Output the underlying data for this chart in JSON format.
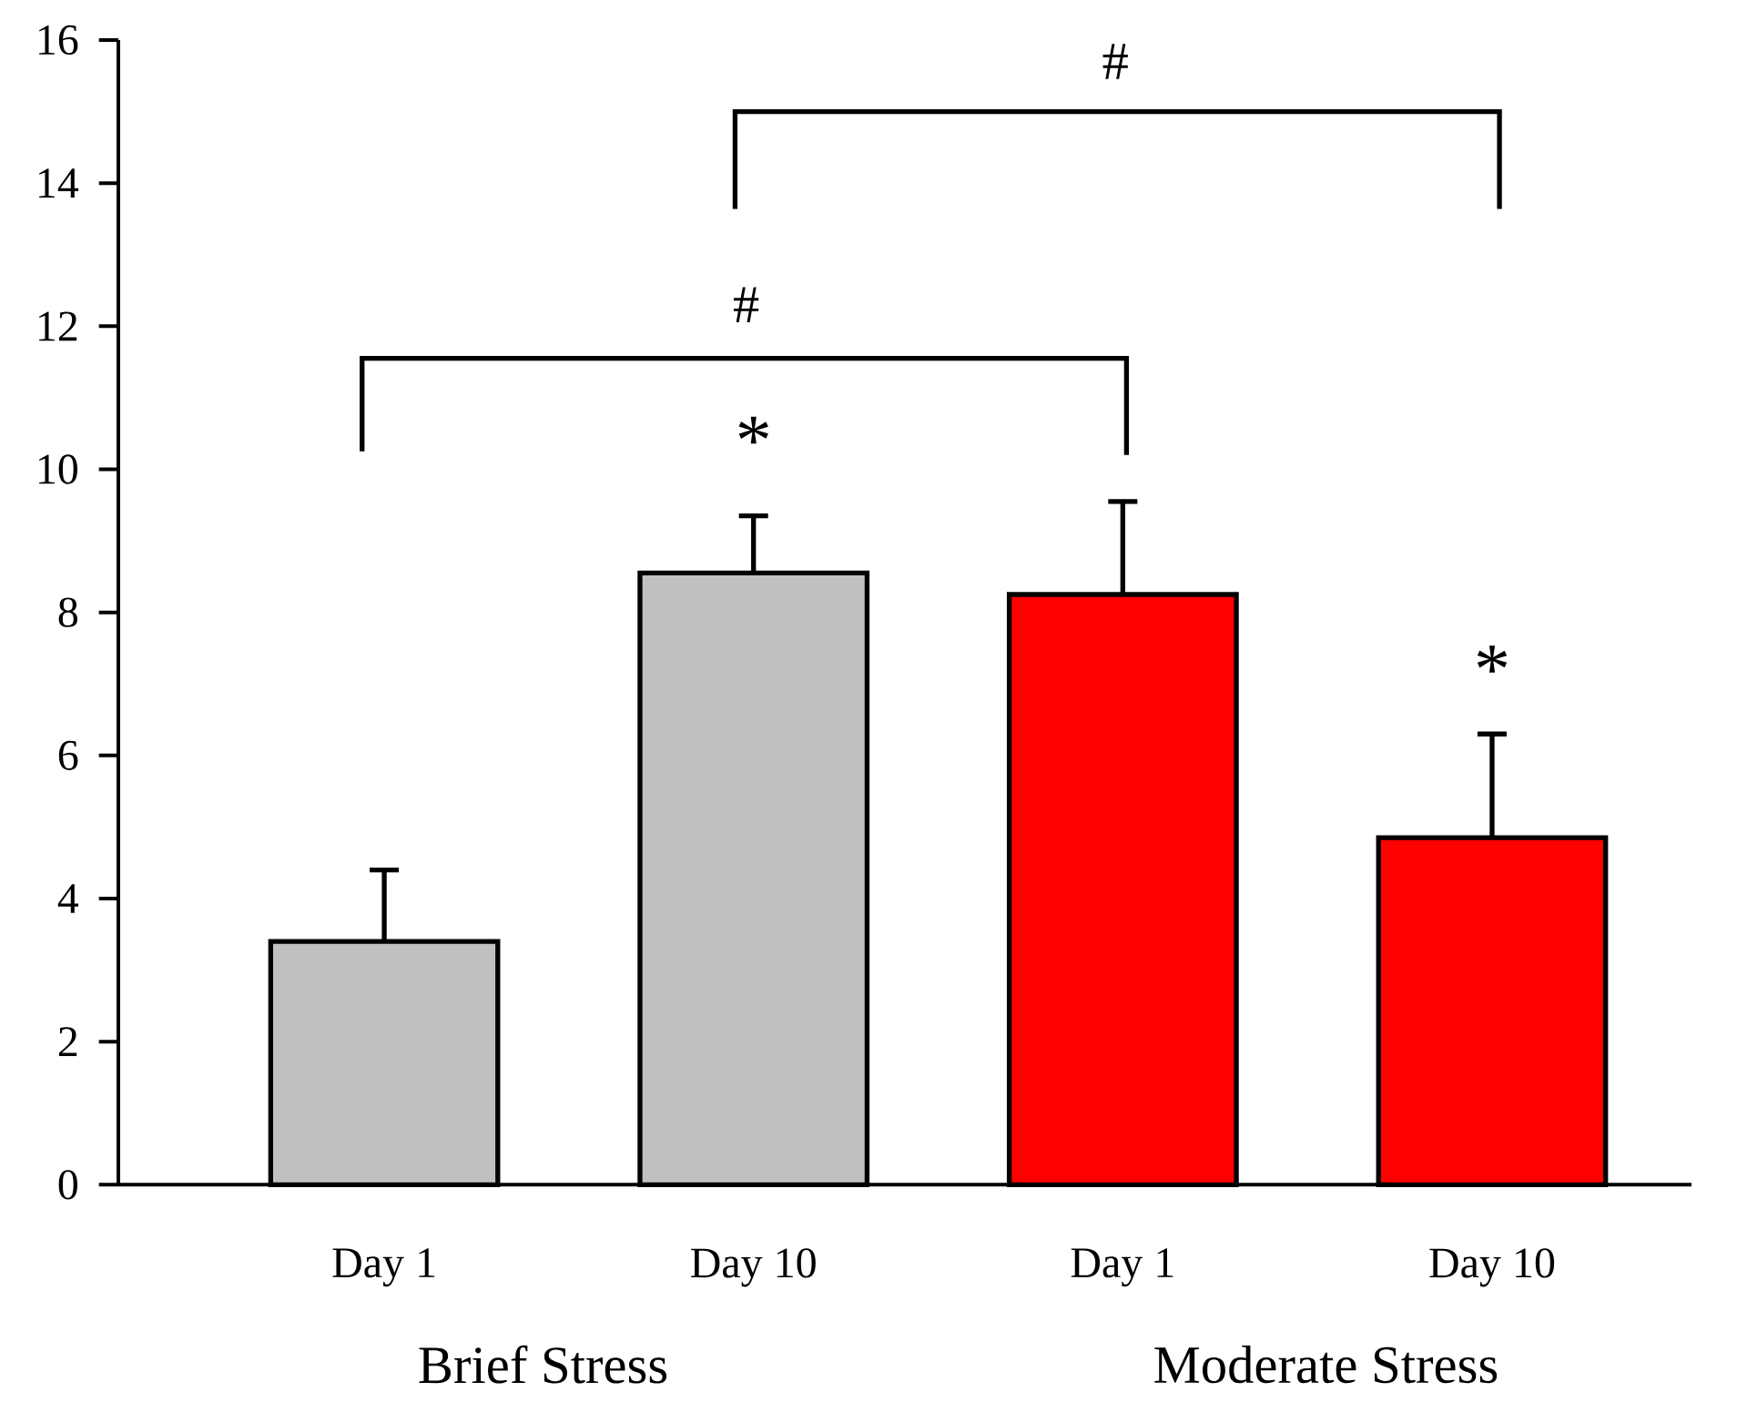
{
  "chart_data": {
    "type": "bar",
    "categories": [
      "Day 1",
      "Day 10",
      "Day 1",
      "Day 10"
    ],
    "values": [
      3.4,
      8.55,
      8.25,
      4.85
    ],
    "colors": [
      "#c0c0c0",
      "#c0c0c0",
      "#ff0000",
      "#ff0000"
    ],
    "errors": [
      1.0,
      0.8,
      1.3,
      1.45
    ],
    "ylim": [
      0,
      16
    ],
    "yticks": [
      0,
      2,
      4,
      6,
      8,
      10,
      12,
      14,
      16
    ],
    "grid": false,
    "annotations": [
      "#",
      "#",
      "*",
      "*",
      "Brief Stress",
      "Moderate Stress"
    ]
  }
}
